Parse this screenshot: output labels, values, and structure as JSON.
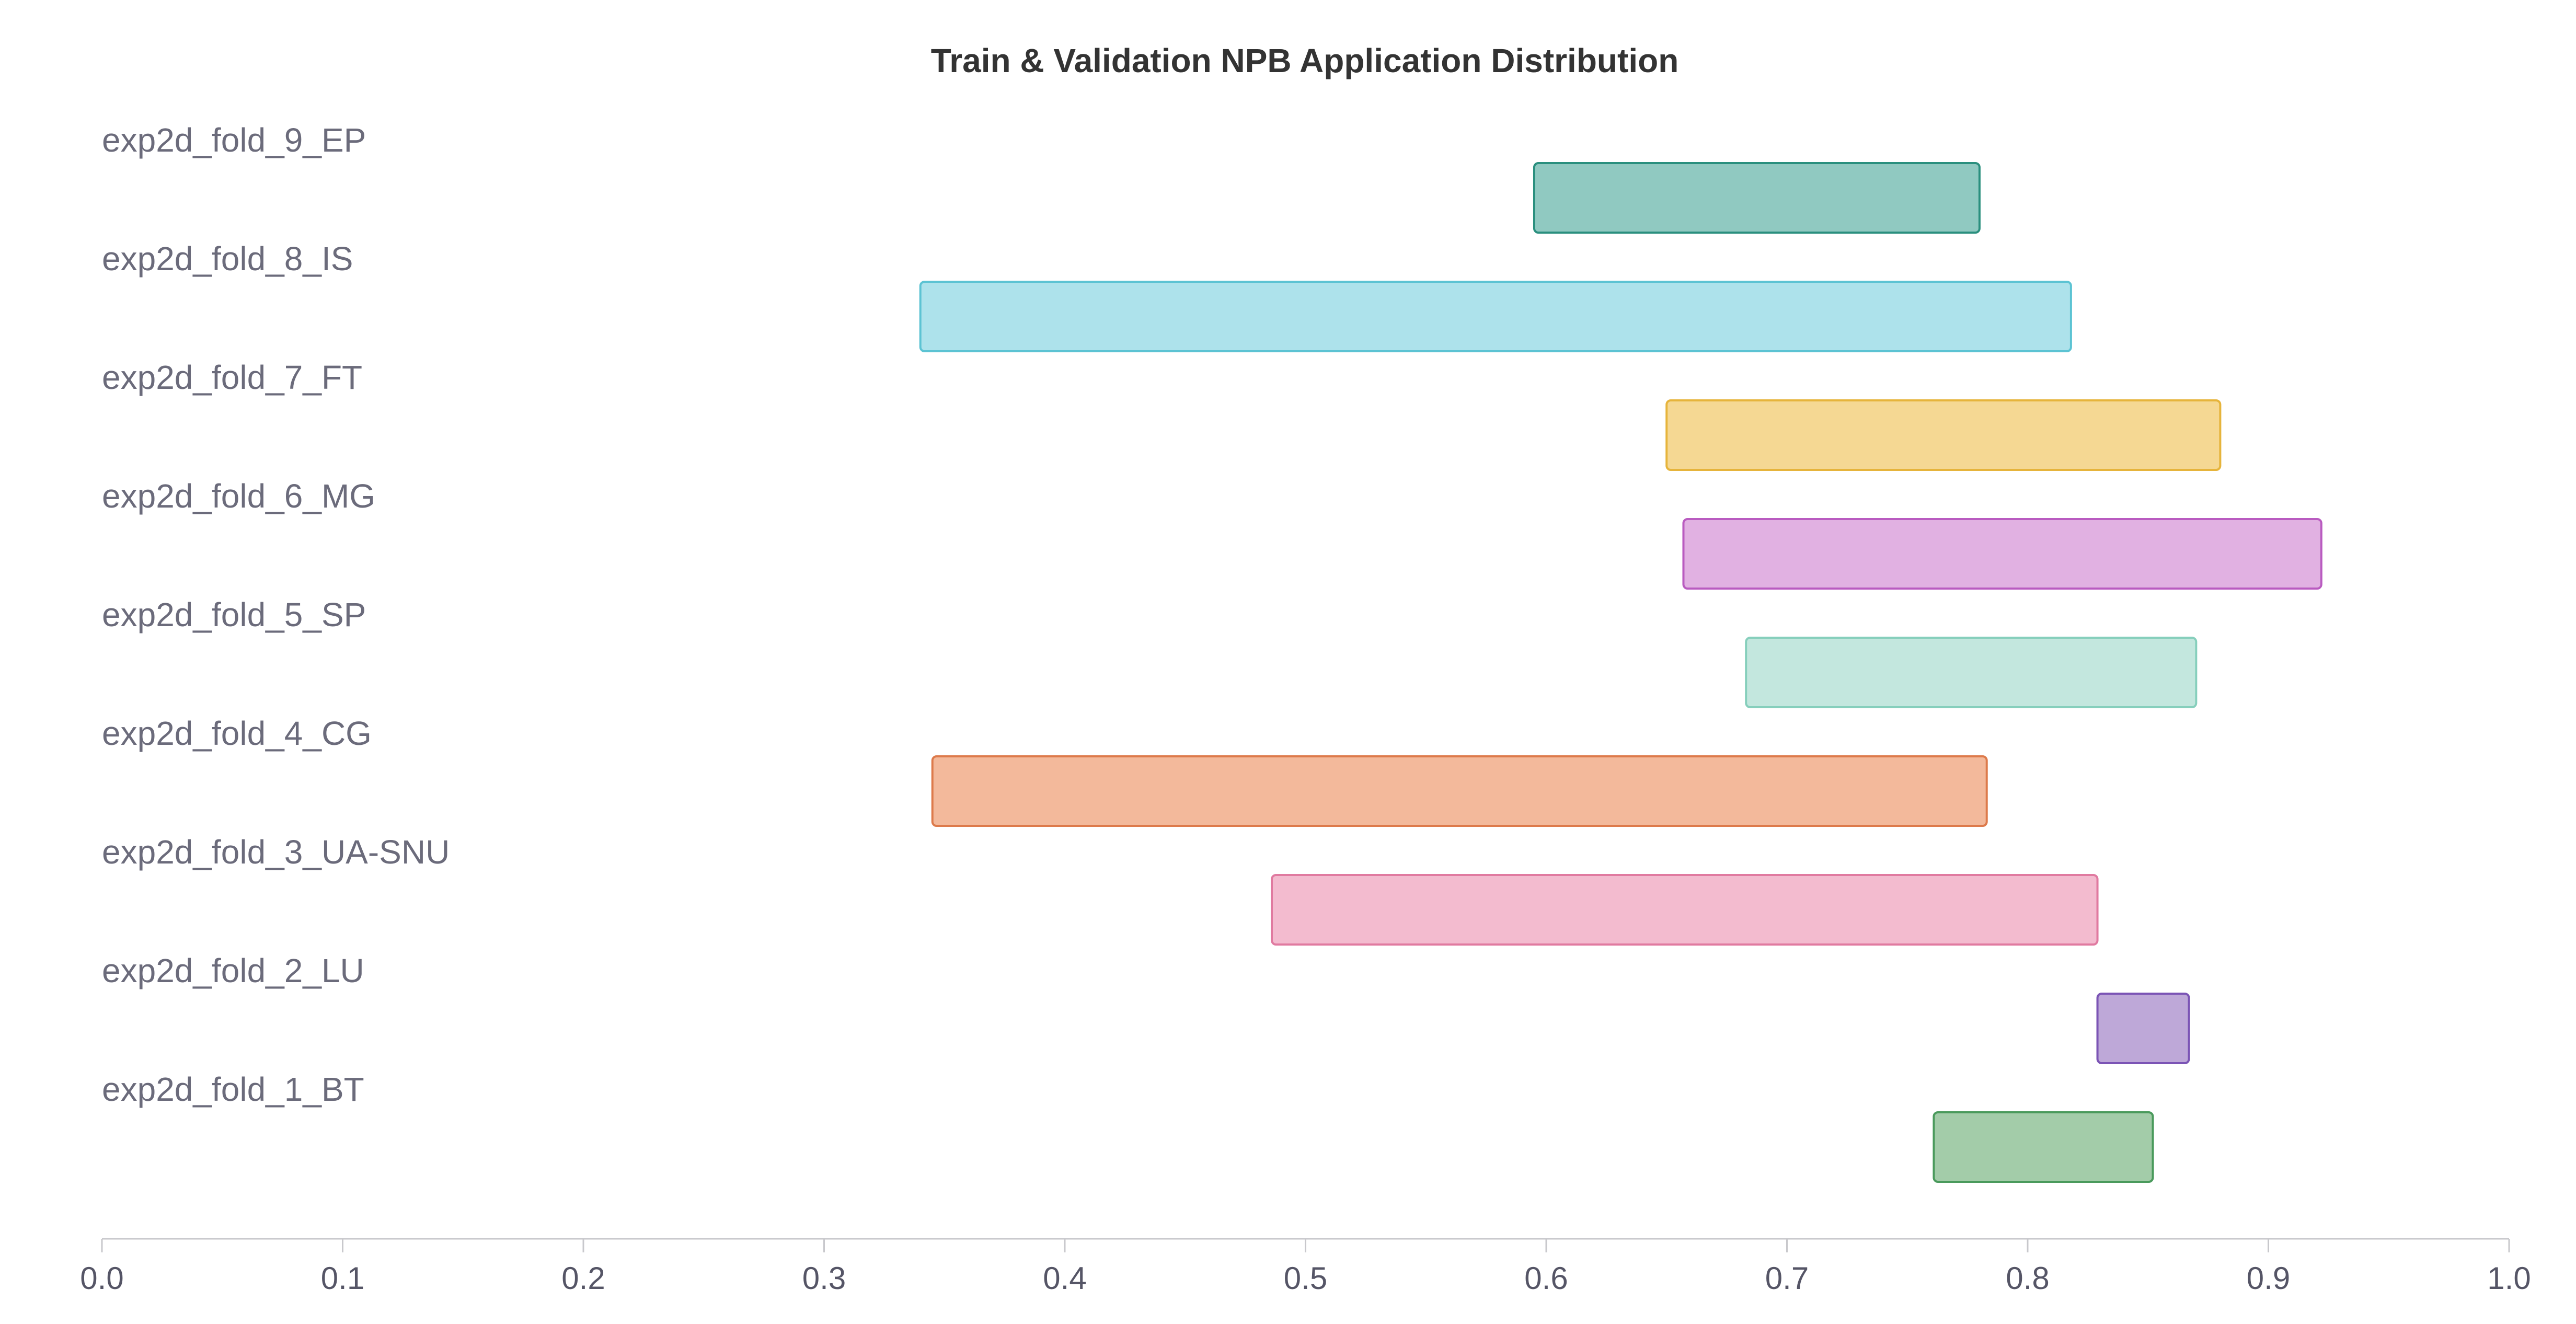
{
  "chart_data": {
    "type": "bar",
    "orientation": "horizontal-range",
    "title": "Train & Validation NPB Application Distribution",
    "xlabel": "",
    "ylabel": "",
    "xlim": [
      0.0,
      1.0
    ],
    "xticks": [
      "0.0",
      "0.1",
      "0.2",
      "0.3",
      "0.4",
      "0.5",
      "0.6",
      "0.7",
      "0.8",
      "0.9",
      "1.0"
    ],
    "grid": false,
    "legend": "none",
    "categories": [
      "exp2d_fold_9_EP",
      "exp2d_fold_8_IS",
      "exp2d_fold_7_FT",
      "exp2d_fold_6_MG",
      "exp2d_fold_5_SP",
      "exp2d_fold_4_CG",
      "exp2d_fold_3_UA-SNU",
      "exp2d_fold_2_LU",
      "exp2d_fold_1_BT"
    ],
    "ranges": [
      {
        "start": 0.595,
        "end": 0.78,
        "fill": "#90c9c1",
        "stroke": "#2a8f7e"
      },
      {
        "start": 0.34,
        "end": 0.818,
        "fill": "#ade2eb",
        "stroke": "#5cc3d3"
      },
      {
        "start": 0.65,
        "end": 0.88,
        "fill": "#f5d893",
        "stroke": "#e6b43b"
      },
      {
        "start": 0.657,
        "end": 0.922,
        "fill": "#e1b1e2",
        "stroke": "#b95bc0"
      },
      {
        "start": 0.683,
        "end": 0.87,
        "fill": "#c3e7de",
        "stroke": "#86cfbc"
      },
      {
        "start": 0.345,
        "end": 0.783,
        "fill": "#f3b99b",
        "stroke": "#dd7a4b"
      },
      {
        "start": 0.486,
        "end": 0.829,
        "fill": "#f3bbcf",
        "stroke": "#e07aa0"
      },
      {
        "start": 0.829,
        "end": 0.867,
        "fill": "#bea8d8",
        "stroke": "#7b54b5"
      },
      {
        "start": 0.761,
        "end": 0.852,
        "fill": "#a3cca9",
        "stroke": "#4a9a5c"
      }
    ]
  }
}
